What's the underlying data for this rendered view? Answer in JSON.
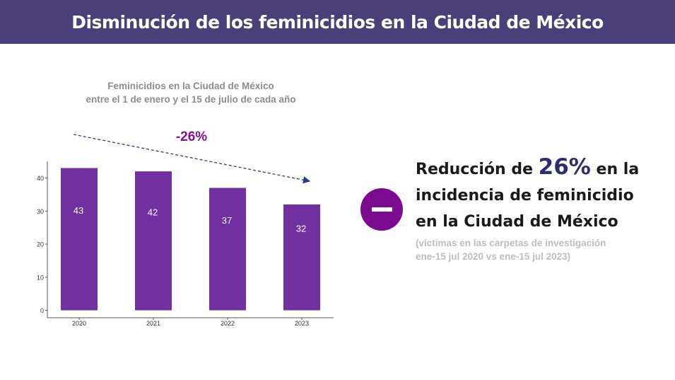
{
  "header": {
    "title": "Disminución de los feminicidios en la Ciudad de México"
  },
  "chart_title": {
    "line1": "Feminicidios en la Ciudad de México",
    "line2": "entre el 1 de enero y el 15 de julio de cada año"
  },
  "change_label": "-26%",
  "colors": {
    "banner": "#4a3f79",
    "bar": "#7030a0",
    "accent_purple": "#8b0f8f",
    "minus_circle": "#7a0b8e",
    "trend_arrow": "#2a3e7a",
    "highlight_number": "#2f2d6e"
  },
  "chart_data": {
    "type": "bar",
    "title": "Feminicidios en la Ciudad de México entre el 1 de enero y el 15 de julio de cada año",
    "categories": [
      "2020",
      "2021",
      "2022",
      "2023"
    ],
    "values": [
      43,
      42,
      37,
      32
    ],
    "data_labels": [
      "43",
      "42",
      "37",
      "32"
    ],
    "yticks": [
      0,
      10,
      20,
      30,
      40
    ],
    "ylim": [
      0,
      45
    ],
    "xlabel": "",
    "ylabel": "",
    "grid": false,
    "annotation": "-26%",
    "trend_arrow": "decreasing, from 2020 to 2023"
  },
  "summary": {
    "icon": "minus-icon",
    "line1_pre": "Reducción de ",
    "line1_number": "26%",
    "line1_post": " en la",
    "line2": "incidencia de feminicidio",
    "line3": "en la Ciudad de México",
    "note_line1": "(víctimas en las carpetas de investigación",
    "note_line2": "ene-15 jul 2020 vs ene-15 jul 2023)"
  }
}
